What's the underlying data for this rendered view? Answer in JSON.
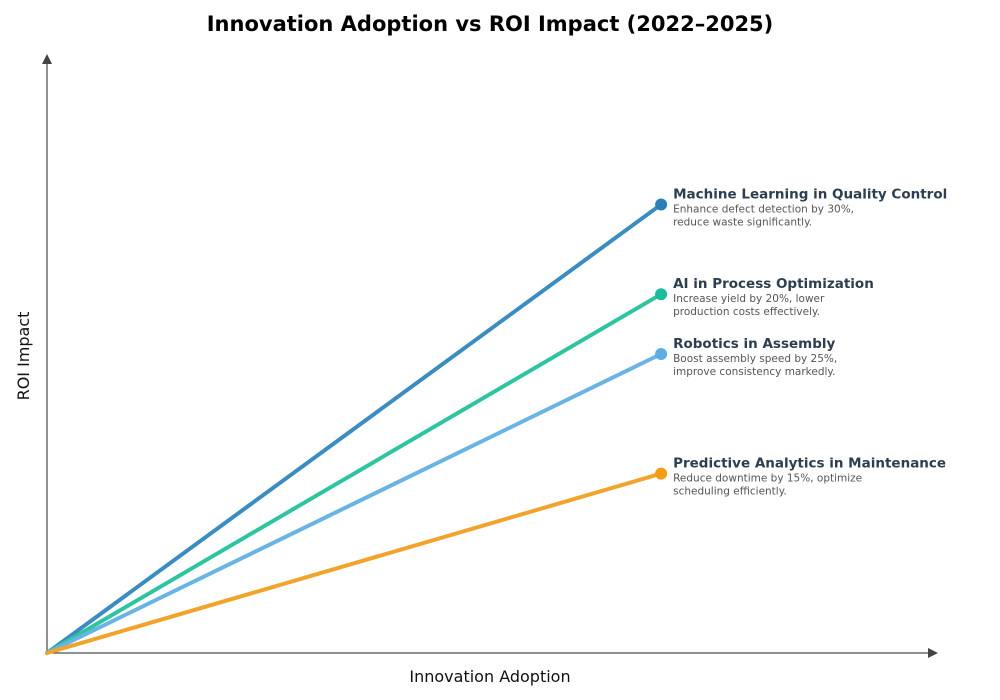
{
  "chart_data": {
    "type": "line",
    "title": "Innovation Adoption vs ROI Impact (2022–2025)",
    "xlabel": "Innovation Adoption",
    "ylabel": "ROI Impact",
    "xlim": [
      0,
      1
    ],
    "ylim": [
      0,
      1
    ],
    "grid": false,
    "ticks": false,
    "series": [
      {
        "name": "Machine Learning in Quality Control",
        "description": [
          "Enhance defect detection by 30%,",
          "reduce waste significantly."
        ],
        "color": "#3a8cc1",
        "marker_color": "#2980b9",
        "x": [
          0,
          0.69
        ],
        "y": [
          0,
          0.75
        ]
      },
      {
        "name": "AI in Process Optimization",
        "description": [
          "Increase yield by 20%, lower",
          "production costs effectively."
        ],
        "color": "#2ec4a0",
        "marker_color": "#1abc9c",
        "x": [
          0,
          0.69
        ],
        "y": [
          0,
          0.6
        ]
      },
      {
        "name": "Robotics in Assembly",
        "description": [
          "Boost assembly speed by 25%,",
          "improve consistency markedly."
        ],
        "color": "#6ab4e4",
        "marker_color": "#5dade2",
        "x": [
          0,
          0.69
        ],
        "y": [
          0,
          0.5
        ]
      },
      {
        "name": "Predictive Analytics in Maintenance",
        "description": [
          "Reduce downtime by 15%, optimize",
          "scheduling efficiently."
        ],
        "color": "#f2a32c",
        "marker_color": "#f39c12",
        "x": [
          0,
          0.69
        ],
        "y": [
          0,
          0.3
        ]
      }
    ]
  }
}
